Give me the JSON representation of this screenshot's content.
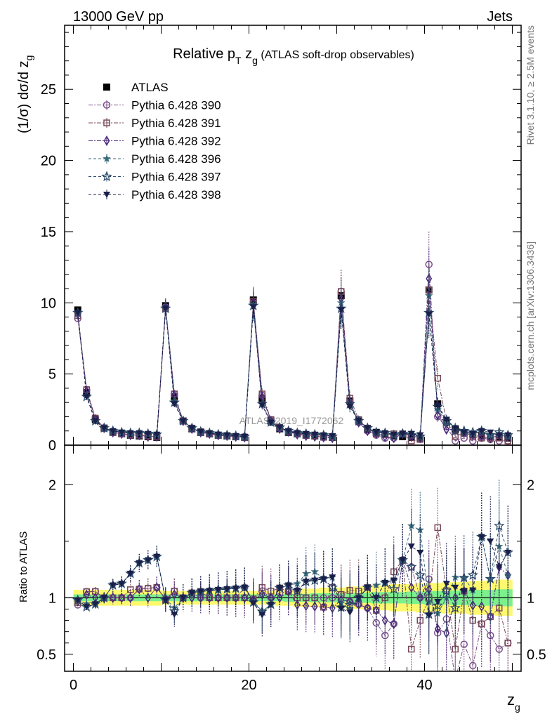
{
  "header": {
    "left": "13000 GeV pp",
    "right": "Jets"
  },
  "side_text": {
    "rivet": "Rivet 3.1.10, ≥ 2.5M events",
    "mcplots": "mcplots.cern.ch [arXiv:1306.3436]"
  },
  "watermark": "ATLAS_2019_I1772062",
  "chart_data": [
    {
      "type": "scatter",
      "title_main": "Relative p",
      "title_sub1": "T",
      "title_mid": " z",
      "title_sub2": "g",
      "title_tail": " (ATLAS soft-drop observables)",
      "ylabel": "(1/σ) dσ/d z",
      "ylabel_sub": "g",
      "xlabel": "z",
      "xlabel_sub": "g",
      "xlim": [
        -1,
        51
      ],
      "ylim": [
        0,
        29.5
      ],
      "yticks": [
        "0",
        "5",
        "10",
        "15",
        "20",
        "25"
      ],
      "xticks": [
        "0",
        "20",
        "40"
      ],
      "legend_position": "top-left",
      "x": [
        0.5,
        1.5,
        2.5,
        3.5,
        4.5,
        5.5,
        6.5,
        7.5,
        8.5,
        9.5,
        10.5,
        11.5,
        12.5,
        13.5,
        14.5,
        15.5,
        16.5,
        17.5,
        18.5,
        19.5,
        20.5,
        21.5,
        22.5,
        23.5,
        24.5,
        25.5,
        26.5,
        27.5,
        28.5,
        29.5,
        30.5,
        31.5,
        32.5,
        33.5,
        34.5,
        35.5,
        36.5,
        37.5,
        38.5,
        39.5,
        40.5,
        41.5,
        42.5,
        43.5,
        44.5,
        45.5,
        46.5,
        47.5,
        48.5,
        49.5
      ],
      "series": [
        {
          "name": "ATLAS",
          "marker": "square-filled",
          "color": "#000000",
          "values": [
            9.5,
            3.7,
            1.8,
            1.2,
            0.9,
            0.8,
            0.7,
            0.65,
            0.6,
            0.55,
            9.8,
            3.4,
            1.7,
            1.15,
            0.9,
            0.8,
            0.7,
            0.65,
            0.6,
            0.55,
            10.2,
            3.3,
            1.7,
            1.15,
            0.9,
            0.8,
            0.7,
            0.65,
            0.6,
            0.55,
            10.5,
            3.1,
            1.7,
            1.1,
            0.9,
            0.75,
            0.65,
            0.6,
            0.55,
            0.5,
            10.9,
            2.9,
            1.6,
            1.1,
            0.85,
            0.75,
            0.65,
            0.6,
            0.55,
            0.5
          ]
        },
        {
          "name": "Pythia 6.428 390",
          "marker": "circle-open",
          "color": "#7a4f8a",
          "values": [
            8.9,
            3.9,
            1.9,
            1.2,
            0.9,
            0.8,
            0.7,
            0.7,
            0.65,
            0.6,
            9.7,
            3.6,
            1.7,
            1.2,
            0.9,
            0.8,
            0.7,
            0.65,
            0.6,
            0.6,
            10.0,
            3.5,
            1.7,
            1.2,
            0.95,
            0.85,
            0.7,
            0.65,
            0.6,
            0.55,
            10.8,
            3.0,
            1.6,
            1.0,
            0.7,
            0.5,
            0.5,
            0.8,
            0.7,
            0.5,
            12.7,
            2.0,
            1.3,
            0.3,
            0.5,
            0.3,
            0.5,
            0.4,
            0.3,
            0.3
          ]
        },
        {
          "name": "Pythia 6.428 391",
          "marker": "square-open",
          "color": "#7a4a5a",
          "values": [
            9.1,
            3.9,
            1.9,
            1.2,
            0.9,
            0.8,
            0.75,
            0.7,
            0.65,
            0.6,
            9.6,
            3.6,
            1.7,
            1.2,
            0.95,
            0.8,
            0.7,
            0.65,
            0.6,
            0.55,
            10.1,
            3.6,
            1.8,
            1.25,
            0.95,
            0.8,
            0.7,
            0.65,
            0.55,
            0.6,
            10.8,
            3.3,
            1.8,
            1.2,
            0.8,
            0.75,
            0.8,
            0.8,
            0.3,
            0.4,
            10.9,
            4.7,
            1.7,
            0.6,
            0.9,
            0.6,
            0.5,
            0.5,
            0.5,
            0.3
          ]
        },
        {
          "name": "Pythia 6.428 392",
          "marker": "diamond-open",
          "color": "#4a2a7a",
          "values": [
            9.2,
            3.8,
            1.8,
            1.2,
            0.9,
            0.8,
            0.7,
            0.7,
            0.6,
            0.6,
            9.7,
            3.5,
            1.7,
            1.15,
            0.9,
            0.8,
            0.7,
            0.65,
            0.6,
            0.55,
            10.0,
            3.4,
            1.7,
            1.15,
            0.95,
            0.75,
            0.65,
            0.6,
            0.55,
            0.5,
            10.3,
            3.0,
            1.6,
            1.0,
            0.8,
            0.6,
            0.5,
            0.8,
            0.6,
            0.5,
            11.7,
            2.1,
            1.1,
            1.1,
            0.9,
            0.7,
            0.6,
            0.5,
            0.7,
            0.6
          ]
        },
        {
          "name": "Pythia 6.428 396",
          "marker": "star-filled",
          "color": "#3a6a7a",
          "values": [
            9.3,
            3.5,
            1.7,
            1.2,
            1.0,
            0.9,
            0.85,
            0.85,
            0.8,
            0.75,
            9.7,
            3.1,
            1.7,
            1.2,
            0.95,
            0.85,
            0.75,
            0.7,
            0.65,
            0.6,
            9.9,
            2.9,
            1.6,
            1.25,
            1.0,
            0.9,
            0.85,
            0.8,
            0.7,
            0.65,
            10.0,
            2.8,
            1.7,
            1.2,
            1.0,
            0.85,
            0.75,
            0.8,
            0.9,
            0.8,
            10.5,
            2.5,
            1.6,
            1.3,
            1.0,
            0.8,
            1.0,
            0.7,
            0.8,
            0.6
          ]
        },
        {
          "name": "Pythia 6.428 397",
          "marker": "star-open",
          "color": "#2a4a6a",
          "values": [
            9.3,
            3.4,
            1.7,
            1.2,
            1.0,
            0.9,
            0.85,
            0.85,
            0.8,
            0.75,
            9.6,
            3.0,
            1.7,
            1.2,
            0.95,
            0.85,
            0.75,
            0.7,
            0.65,
            0.6,
            9.8,
            2.9,
            1.6,
            1.25,
            1.0,
            0.85,
            0.8,
            0.75,
            0.7,
            0.6,
            9.6,
            2.9,
            1.7,
            1.2,
            0.9,
            0.85,
            0.7,
            0.8,
            0.7,
            0.6,
            9.3,
            2.7,
            1.7,
            1.0,
            1.0,
            0.9,
            1.0,
            0.7,
            0.9,
            0.7
          ]
        },
        {
          "name": "Pythia 6.428 398",
          "marker": "triangle-down-filled",
          "color": "#1a1f4a",
          "values": [
            9.3,
            3.4,
            1.7,
            1.2,
            1.0,
            0.9,
            0.85,
            0.85,
            0.8,
            0.75,
            9.6,
            2.9,
            1.7,
            1.2,
            0.95,
            0.85,
            0.75,
            0.7,
            0.65,
            0.6,
            9.7,
            2.8,
            1.6,
            1.25,
            1.0,
            0.85,
            0.8,
            0.75,
            0.7,
            0.65,
            9.5,
            2.7,
            1.7,
            1.2,
            0.9,
            0.85,
            0.75,
            0.8,
            0.8,
            0.7,
            9.2,
            2.8,
            1.8,
            1.2,
            0.9,
            0.8,
            1.0,
            0.9,
            0.7,
            0.7
          ]
        }
      ]
    },
    {
      "type": "scatter",
      "ylabel": "Ratio to ATLAS",
      "ylim": [
        0.35,
        2.35
      ],
      "yticks": [
        "0.5",
        "1",
        "2"
      ],
      "reference_line": 1,
      "band_colors": {
        "inner": "#7cf08c",
        "outer": "#fdf86e"
      },
      "band_inner_halfwidth": [
        0.03,
        0.03,
        0.03,
        0.03,
        0.03,
        0.03,
        0.03,
        0.03,
        0.03,
        0.03,
        0.03,
        0.03,
        0.03,
        0.03,
        0.03,
        0.03,
        0.03,
        0.03,
        0.03,
        0.03,
        0.03,
        0.03,
        0.03,
        0.03,
        0.035,
        0.035,
        0.035,
        0.04,
        0.04,
        0.04,
        0.04,
        0.04,
        0.045,
        0.045,
        0.05,
        0.05,
        0.05,
        0.05,
        0.055,
        0.055,
        0.06,
        0.06,
        0.06,
        0.065,
        0.065,
        0.07,
        0.07,
        0.07,
        0.075,
        0.075
      ],
      "band_outer_halfwidth": [
        0.07,
        0.07,
        0.07,
        0.07,
        0.07,
        0.07,
        0.07,
        0.07,
        0.07,
        0.07,
        0.06,
        0.06,
        0.06,
        0.06,
        0.06,
        0.06,
        0.06,
        0.06,
        0.06,
        0.06,
        0.06,
        0.06,
        0.06,
        0.07,
        0.07,
        0.08,
        0.08,
        0.08,
        0.09,
        0.09,
        0.09,
        0.1,
        0.1,
        0.1,
        0.11,
        0.11,
        0.12,
        0.12,
        0.12,
        0.13,
        0.13,
        0.13,
        0.14,
        0.14,
        0.14,
        0.15,
        0.15,
        0.15,
        0.16,
        0.16
      ]
    }
  ]
}
